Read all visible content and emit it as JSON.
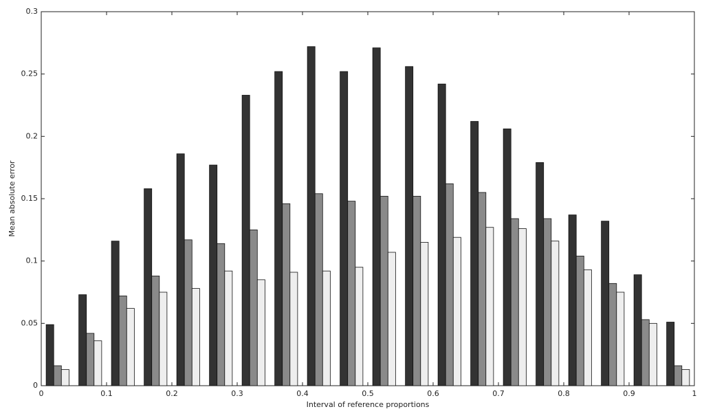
{
  "chart_data": {
    "type": "bar",
    "x_label": "Interval of reference proportions",
    "y_label": "Mean absolute error",
    "x": [
      0.025,
      0.075,
      0.125,
      0.175,
      0.225,
      0.275,
      0.325,
      0.375,
      0.425,
      0.475,
      0.525,
      0.575,
      0.625,
      0.675,
      0.725,
      0.775,
      0.825,
      0.875,
      0.925,
      0.975
    ],
    "series": [
      {
        "color": "#333333",
        "values": [
          0.049,
          0.073,
          0.116,
          0.158,
          0.186,
          0.177,
          0.233,
          0.252,
          0.272,
          0.252,
          0.271,
          0.256,
          0.242,
          0.212,
          0.206,
          0.179,
          0.137,
          0.132,
          0.089,
          0.051
        ]
      },
      {
        "color": "#8a8a8a",
        "values": [
          0.016,
          0.042,
          0.072,
          0.088,
          0.117,
          0.114,
          0.125,
          0.146,
          0.154,
          0.148,
          0.152,
          0.152,
          0.162,
          0.155,
          0.134,
          0.134,
          0.104,
          0.082,
          0.053,
          0.016
        ]
      },
      {
        "color": "#eeeeee",
        "values": [
          0.013,
          0.036,
          0.062,
          0.075,
          0.078,
          0.092,
          0.085,
          0.091,
          0.092,
          0.095,
          0.107,
          0.115,
          0.119,
          0.127,
          0.126,
          0.116,
          0.093,
          0.075,
          0.05,
          0.013
        ]
      }
    ],
    "xlim": [
      0,
      1
    ],
    "xticks": [
      0,
      0.1,
      0.2,
      0.3,
      0.4,
      0.5,
      0.6,
      0.7,
      0.8,
      0.9,
      1
    ],
    "ylim": [
      0,
      0.3
    ],
    "yticks": [
      0,
      0.05,
      0.1,
      0.15,
      0.2,
      0.25,
      0.3
    ],
    "grid": false
  }
}
